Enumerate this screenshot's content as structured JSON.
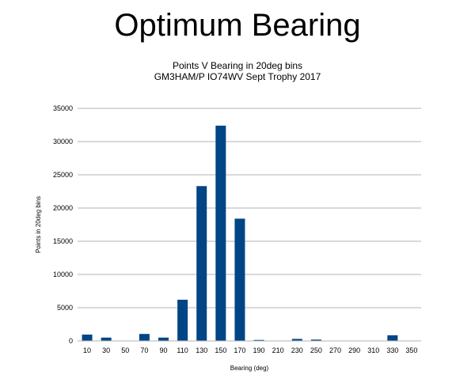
{
  "page": {
    "title": "Optimum Bearing"
  },
  "chart_data": {
    "type": "bar",
    "title": "Points V Bearing in 20deg bins",
    "subtitle": "GM3HAM/P IO74WV Sept Trophy 2017",
    "xlabel": "Bearing (deg)",
    "ylabel": "Points in 20deg bins",
    "categories": [
      "10",
      "30",
      "50",
      "70",
      "90",
      "110",
      "130",
      "150",
      "170",
      "190",
      "210",
      "230",
      "250",
      "270",
      "290",
      "310",
      "330",
      "350"
    ],
    "values": [
      950,
      500,
      0,
      1050,
      500,
      6200,
      23300,
      32400,
      18400,
      150,
      0,
      300,
      200,
      0,
      0,
      0,
      850,
      0
    ],
    "ylim": [
      0,
      35000
    ],
    "yticks": [
      0,
      5000,
      10000,
      15000,
      20000,
      25000,
      30000,
      35000
    ],
    "grid": true,
    "legend": "none",
    "bar_color": "#004586"
  }
}
